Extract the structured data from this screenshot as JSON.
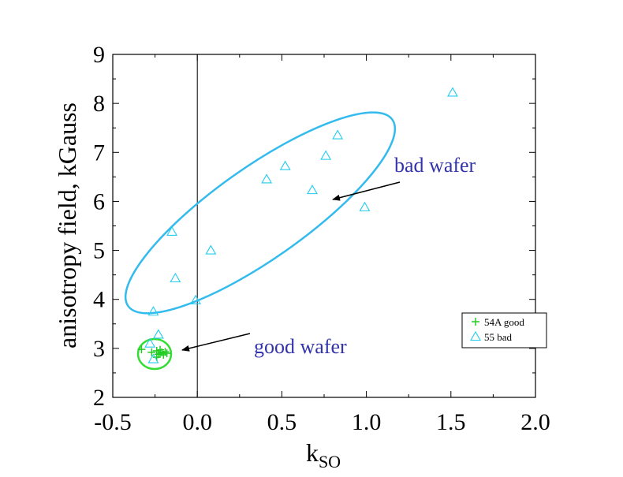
{
  "chart_data": {
    "type": "scatter",
    "xlabel": "k",
    "xlabel_sub": "SO",
    "ylabel": "anisotropy field, kGauss",
    "xlim": [
      -0.5,
      2.0
    ],
    "ylim": [
      2,
      9
    ],
    "xticks": [
      -0.5,
      0.0,
      0.5,
      1.0,
      1.5,
      2.0
    ],
    "xtick_labels": [
      "-0.5",
      "0.0",
      "0.5",
      "1.0",
      "1.5",
      "2.0"
    ],
    "yticks": [
      2,
      3,
      4,
      5,
      6,
      7,
      8,
      9
    ],
    "ytick_labels": [
      "2",
      "3",
      "4",
      "5",
      "6",
      "7",
      "8",
      "9"
    ],
    "grid": false,
    "vertical_reference_line_x": 0.0,
    "legend_position": "bottom-right",
    "series": [
      {
        "name": "54A good",
        "marker": "plus",
        "color": "#22cc22",
        "points": [
          [
            -0.33,
            2.98
          ],
          [
            -0.27,
            2.92
          ],
          [
            -0.24,
            2.95
          ],
          [
            -0.23,
            2.88
          ],
          [
            -0.22,
            2.97
          ],
          [
            -0.21,
            2.92
          ],
          [
            -0.2,
            2.87
          ],
          [
            -0.19,
            2.93
          ],
          [
            -0.24,
            2.82
          ],
          [
            -0.22,
            2.9
          ],
          [
            -0.18,
            2.9
          ]
        ]
      },
      {
        "name": "55 bad",
        "marker": "triangle",
        "color": "#22ccee",
        "points": [
          [
            1.51,
            8.22
          ],
          [
            0.83,
            7.35
          ],
          [
            0.76,
            6.93
          ],
          [
            0.52,
            6.72
          ],
          [
            0.41,
            6.45
          ],
          [
            0.68,
            6.23
          ],
          [
            0.99,
            5.88
          ],
          [
            -0.15,
            5.38
          ],
          [
            0.08,
            5.0
          ],
          [
            -0.13,
            4.43
          ],
          [
            -0.01,
            3.98
          ],
          [
            -0.26,
            3.75
          ],
          [
            -0.23,
            3.28
          ],
          [
            -0.28,
            3.1
          ],
          [
            -0.26,
            2.78
          ]
        ]
      }
    ],
    "annotations": [
      {
        "text": "bad wafer",
        "color": "#3333aa"
      },
      {
        "text": "good wafer",
        "color": "#3333aa"
      }
    ]
  }
}
